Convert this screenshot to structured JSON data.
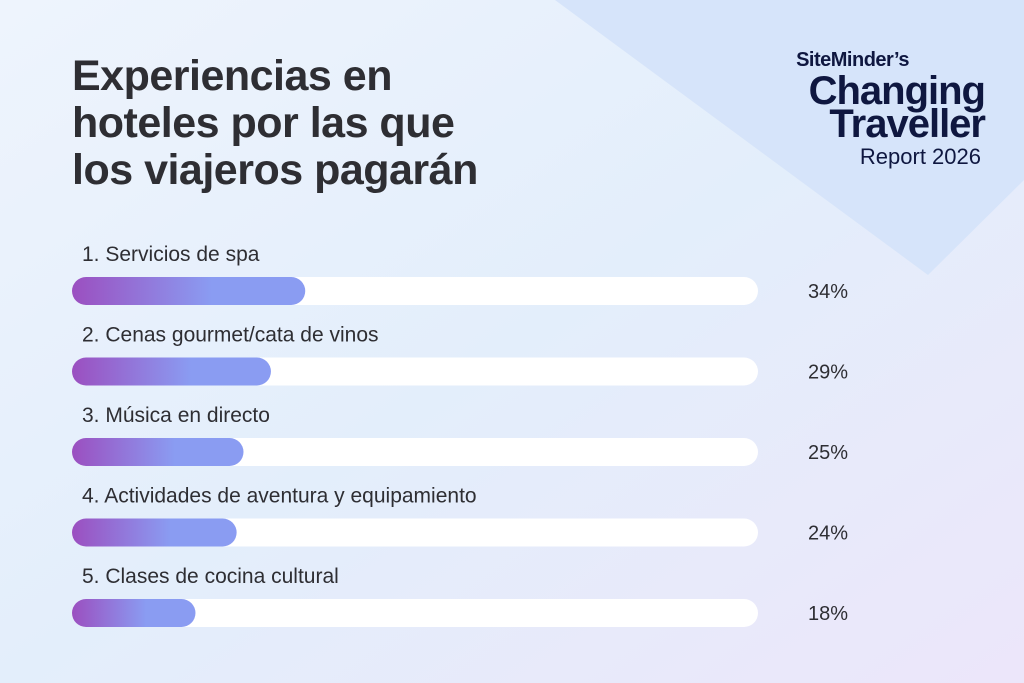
{
  "chart_data": {
    "type": "hbar",
    "title": "Experiencias en hoteles por las que los viajeros pagarán",
    "categories": [
      "1. Servicios de spa",
      "2. Cenas gourmet/cata de vinos",
      "3. Música en directo",
      "4. Actividades de aventura y equipamiento",
      "5. Clases de cocina cultural"
    ],
    "values": [
      34,
      29,
      25,
      24,
      18
    ],
    "value_labels": [
      "34%",
      "29%",
      "25%",
      "24%",
      "18%"
    ],
    "xlim": [
      0,
      100
    ],
    "color": [
      "#9b4fc0",
      "#8a9cf2"
    ]
  },
  "branding": {
    "lines": [
      "SiteMinder’s",
      "Changing",
      "Traveller",
      "Report 2026"
    ]
  }
}
